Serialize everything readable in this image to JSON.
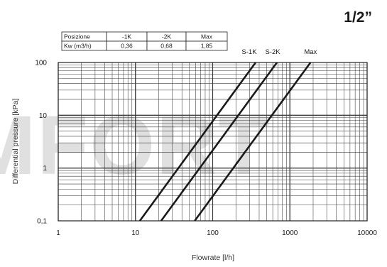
{
  "size_title": "1/2”",
  "watermark_text": "MFORT",
  "kv_table": {
    "rows": [
      [
        "Posizione",
        "-1K",
        "-2K",
        "Max"
      ],
      [
        "Kw (m3/h)",
        "0,36",
        "0,68",
        "1,85"
      ]
    ]
  },
  "chart_data": {
    "type": "line",
    "title": "",
    "xlabel": "Flowrate [l/h]",
    "ylabel": "Differential pressure [kPa]",
    "x_scale": "log",
    "y_scale": "log",
    "xlim": [
      1,
      10000
    ],
    "ylim": [
      0.1,
      100
    ],
    "x_ticks": [
      {
        "value": 1,
        "label": "1"
      },
      {
        "value": 10,
        "label": "10"
      },
      {
        "value": 100,
        "label": "100"
      },
      {
        "value": 1000,
        "label": "1000"
      },
      {
        "value": 10000,
        "label": "10000"
      }
    ],
    "y_ticks": [
      {
        "value": 0.1,
        "label": "0,1"
      },
      {
        "value": 1,
        "label": "1"
      },
      {
        "value": 10,
        "label": "10"
      },
      {
        "value": 100,
        "label": "100"
      }
    ],
    "grid": true,
    "series": [
      {
        "name": "S-1K",
        "x": [
          11.4,
          360
        ],
        "y": [
          0.1,
          100
        ]
      },
      {
        "name": "S-2K",
        "x": [
          21.5,
          680
        ],
        "y": [
          0.1,
          100
        ]
      },
      {
        "name": "Max",
        "x": [
          58.5,
          1850
        ],
        "y": [
          0.1,
          100
        ]
      }
    ],
    "colors": {
      "line": "#1a1a1a",
      "grid": "#3a3a3a",
      "watermark": "#c8c8c8"
    }
  }
}
